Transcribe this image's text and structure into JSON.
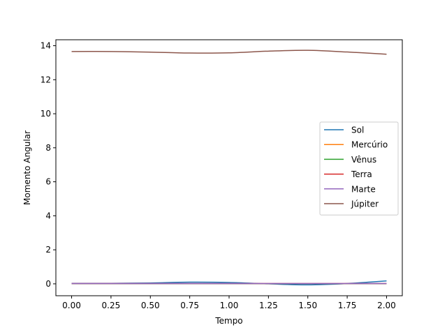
{
  "chart_data": {
    "type": "line",
    "title": "",
    "xlabel": "Tempo",
    "ylabel": "Momento Angular",
    "xlim": [
      -0.1,
      2.1
    ],
    "ylim": [
      -0.7,
      14.35
    ],
    "xticks": [
      0.0,
      0.25,
      0.5,
      0.75,
      1.0,
      1.25,
      1.5,
      1.75,
      2.0
    ],
    "xtick_labels": [
      "0.00",
      "0.25",
      "0.50",
      "0.75",
      "1.00",
      "1.25",
      "1.50",
      "1.75",
      "2.00"
    ],
    "yticks": [
      0,
      2,
      4,
      6,
      8,
      10,
      12,
      14
    ],
    "ytick_labels": [
      "0",
      "2",
      "4",
      "6",
      "8",
      "10",
      "12",
      "14"
    ],
    "grid": false,
    "legend_position": "center-right",
    "x": [
      0.0,
      0.25,
      0.5,
      0.75,
      1.0,
      1.25,
      1.5,
      1.75,
      2.0
    ],
    "series": [
      {
        "name": "Sol",
        "color": "#1f77b4",
        "values": [
          0.03,
          0.03,
          0.05,
          0.1,
          0.08,
          0.0,
          -0.06,
          0.02,
          0.17
        ]
      },
      {
        "name": "Mercúrio",
        "color": "#ff7f0e",
        "values": [
          0.005,
          0.005,
          0.005,
          0.005,
          0.005,
          0.005,
          0.005,
          0.005,
          0.005
        ]
      },
      {
        "name": "Vênus",
        "color": "#2ca02c",
        "values": [
          0.01,
          0.01,
          0.01,
          0.01,
          0.01,
          0.01,
          0.01,
          0.01,
          0.01
        ]
      },
      {
        "name": "Terra",
        "color": "#d62728",
        "values": [
          0.015,
          0.015,
          0.015,
          0.015,
          0.015,
          0.015,
          0.015,
          0.015,
          0.015
        ]
      },
      {
        "name": "Marte",
        "color": "#9467bd",
        "values": [
          0.02,
          0.02,
          0.02,
          0.02,
          0.02,
          0.02,
          0.02,
          0.02,
          0.02
        ]
      },
      {
        "name": "Júpiter",
        "color": "#8c564b",
        "values": [
          13.66,
          13.66,
          13.62,
          13.57,
          13.58,
          13.68,
          13.73,
          13.63,
          13.5
        ]
      }
    ]
  }
}
